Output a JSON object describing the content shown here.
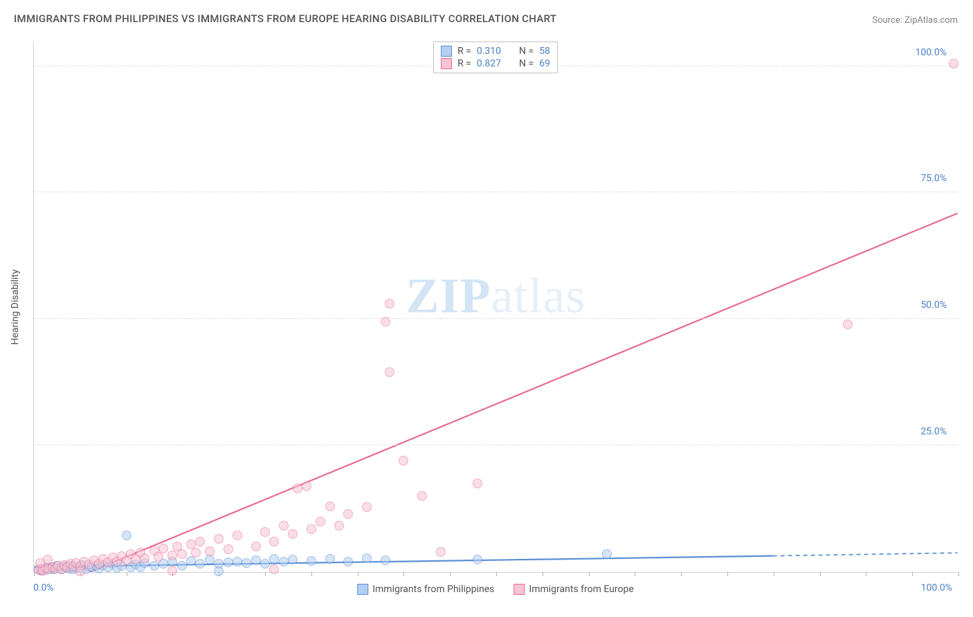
{
  "title": "IMMIGRANTS FROM PHILIPPINES VS IMMIGRANTS FROM EUROPE HEARING DISABILITY CORRELATION CHART",
  "source": "Source: ZipAtlas.com",
  "watermark": {
    "bold": "ZIP",
    "light": "atlas"
  },
  "y_axis_title": "Hearing Disability",
  "chart": {
    "type": "scatter",
    "xlim": [
      0,
      100
    ],
    "ylim": [
      0,
      105
    ],
    "x_ticks_pct": [
      0,
      5,
      10,
      15,
      20,
      25,
      30,
      35,
      40,
      45,
      50,
      55,
      60,
      65,
      70,
      75,
      80,
      85,
      90,
      95,
      100
    ],
    "y_gridlines": [
      25,
      50,
      75,
      100
    ],
    "y_tick_labels": [
      "25.0%",
      "50.0%",
      "75.0%",
      "100.0%"
    ],
    "x_label_0": "0.0%",
    "x_label_100": "100.0%",
    "axis_label_color": "#4a7fc4",
    "grid_color": "#e0e0e0",
    "background_color": "#ffffff",
    "point_radius": 7,
    "point_opacity": 0.55,
    "series": [
      {
        "name": "Immigrants from Philippines",
        "color_fill": "#b3cef0",
        "color_stroke": "#5a8fd4",
        "R": "0.310",
        "N": "58",
        "trend": {
          "x1": 0,
          "y1": 1.0,
          "x2": 80,
          "y2": 3.2,
          "extend_dashed_to": 100,
          "y_at_100": 3.8,
          "stroke_width": 2.2
        },
        "points": [
          [
            0.5,
            0.5
          ],
          [
            0.8,
            0.3
          ],
          [
            1,
            0.7
          ],
          [
            1.2,
            0.4
          ],
          [
            1.5,
            1.0
          ],
          [
            1.8,
            0.6
          ],
          [
            2,
            0.9
          ],
          [
            2.2,
            0.5
          ],
          [
            2.5,
            1.2
          ],
          [
            2.8,
            0.8
          ],
          [
            3,
            0.6
          ],
          [
            3.2,
            1.1
          ],
          [
            3.5,
            0.9
          ],
          [
            3.8,
            0.7
          ],
          [
            4,
            1.3
          ],
          [
            4.3,
            0.6
          ],
          [
            4.6,
            1.0
          ],
          [
            5,
            0.8
          ],
          [
            5.3,
            1.4
          ],
          [
            5.6,
            0.6
          ],
          [
            6,
            1.1
          ],
          [
            6.3,
            0.9
          ],
          [
            6.7,
            1.2
          ],
          [
            7,
            0.7
          ],
          [
            7.5,
            1.4
          ],
          [
            8,
            1.0
          ],
          [
            8.5,
            1.6
          ],
          [
            9,
            0.8
          ],
          [
            9.5,
            1.3
          ],
          [
            10,
            7.2
          ],
          [
            10.5,
            1.0
          ],
          [
            11,
            1.5
          ],
          [
            11.5,
            0.9
          ],
          [
            12,
            1.8
          ],
          [
            13,
            1.2
          ],
          [
            14,
            1.6
          ],
          [
            15,
            2.0
          ],
          [
            16,
            1.3
          ],
          [
            17,
            2.2
          ],
          [
            18,
            1.7
          ],
          [
            19,
            2.4
          ],
          [
            20,
            1.6
          ],
          [
            21,
            1.9
          ],
          [
            22,
            2.1
          ],
          [
            23,
            1.8
          ],
          [
            24,
            2.3
          ],
          [
            25,
            1.7
          ],
          [
            26,
            2.6
          ],
          [
            27,
            2.0
          ],
          [
            28,
            2.4
          ],
          [
            30,
            2.2
          ],
          [
            32,
            2.6
          ],
          [
            34,
            2.0
          ],
          [
            36,
            2.8
          ],
          [
            38,
            2.3
          ],
          [
            48,
            2.4
          ],
          [
            62,
            3.6
          ],
          [
            20,
            0.2
          ]
        ]
      },
      {
        "name": "Immigrants from Europe",
        "color_fill": "#f6c4d4",
        "color_stroke": "#e86a94",
        "R": "0.827",
        "N": "69",
        "trend": {
          "x1": 6,
          "y1": 0,
          "x2": 100,
          "y2": 71,
          "stroke_width": 2.2
        },
        "points": [
          [
            0.5,
            0.4
          ],
          [
            0.8,
            0.6
          ],
          [
            1,
            0.3
          ],
          [
            1.3,
            0.8
          ],
          [
            1.6,
            0.5
          ],
          [
            2,
            1.0
          ],
          [
            2.3,
            0.7
          ],
          [
            2.6,
            1.2
          ],
          [
            3,
            0.6
          ],
          [
            3.3,
            1.4
          ],
          [
            3.6,
            0.9
          ],
          [
            4,
            1.6
          ],
          [
            4.3,
            1.1
          ],
          [
            4.6,
            1.8
          ],
          [
            5,
            1.3
          ],
          [
            5.5,
            2.0
          ],
          [
            6,
            1.5
          ],
          [
            6.5,
            2.3
          ],
          [
            7,
            1.7
          ],
          [
            7.5,
            2.6
          ],
          [
            8,
            1.9
          ],
          [
            8.5,
            2.9
          ],
          [
            9,
            2.1
          ],
          [
            9.5,
            3.2
          ],
          [
            10,
            2.3
          ],
          [
            10.5,
            3.5
          ],
          [
            11,
            2.6
          ],
          [
            11.5,
            3.8
          ],
          [
            12,
            2.8
          ],
          [
            13,
            4.2
          ],
          [
            13.5,
            3.0
          ],
          [
            14,
            4.6
          ],
          [
            15,
            3.3
          ],
          [
            15.5,
            5.0
          ],
          [
            16,
            3.6
          ],
          [
            17,
            5.5
          ],
          [
            17.5,
            3.8
          ],
          [
            18,
            6.0
          ],
          [
            19,
            4.1
          ],
          [
            20,
            6.6
          ],
          [
            21,
            4.5
          ],
          [
            22,
            7.2
          ],
          [
            24,
            5.0
          ],
          [
            25,
            8.0
          ],
          [
            26,
            6.0
          ],
          [
            27,
            9.2
          ],
          [
            28,
            7.5
          ],
          [
            28.5,
            16.5
          ],
          [
            29.5,
            17.0
          ],
          [
            30,
            8.5
          ],
          [
            31,
            10.0
          ],
          [
            32,
            13.0
          ],
          [
            33,
            9.2
          ],
          [
            34,
            11.5
          ],
          [
            36,
            12.8
          ],
          [
            38.5,
            39.5
          ],
          [
            38,
            49.5
          ],
          [
            38.5,
            53.0
          ],
          [
            40,
            22.0
          ],
          [
            42,
            15.0
          ],
          [
            44,
            4.0
          ],
          [
            48,
            17.5
          ],
          [
            88,
            49.0
          ],
          [
            99.5,
            100.5
          ],
          [
            15,
            0.3
          ],
          [
            26,
            0.5
          ],
          [
            5,
            0.2
          ],
          [
            1.5,
            2.5
          ],
          [
            0.7,
            1.8
          ]
        ]
      }
    ]
  },
  "legend_bottom": [
    {
      "label": "Immigrants from Philippines",
      "fill": "#b3cef0",
      "stroke": "#5a8fd4"
    },
    {
      "label": "Immigrants from Europe",
      "fill": "#f6c4d4",
      "stroke": "#e86a94"
    }
  ]
}
